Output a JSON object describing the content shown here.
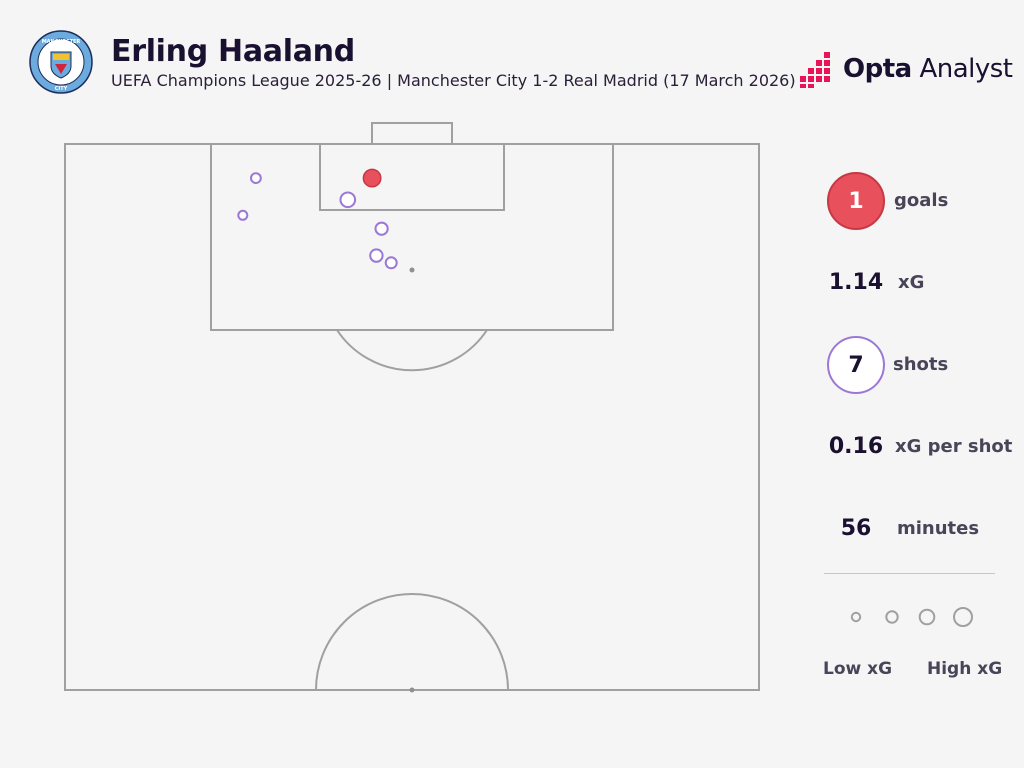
{
  "header": {
    "title": "Erling Haaland",
    "subtitle": "UEFA Champions League 2025-26 | Manchester City 1-2 Real Madrid (17 March 2026)",
    "crest_text": "MANCHESTER CITY",
    "brand_bold": "Opta",
    "brand_light": "Analyst"
  },
  "colors": {
    "goal": "#e8505b",
    "shot": "#9b78d6",
    "pitch_line": "#a0a0a0",
    "background": "#f5f5f5"
  },
  "stats": {
    "goals_value": "1",
    "goals_label": "goals",
    "xg_value": "1.14",
    "xg_label": "xG",
    "shots_value": "7",
    "shots_label": "shots",
    "xg_per_shot_value": "0.16",
    "xg_per_shot_label": "xG per shot",
    "minutes_value": "56",
    "minutes_label": "minutes"
  },
  "legend": {
    "low_label": "Low xG",
    "high_label": "High xG"
  },
  "chart_data": {
    "type": "scatter",
    "pitch": "half-pitch shot map, attacking goal at top",
    "shots": [
      {
        "x_yards_from_left_touchline": 35.4,
        "y_yards_from_goal_line": 3.3,
        "xg": 0.45,
        "outcome": "goal"
      },
      {
        "x_yards_from_left_touchline": 32.6,
        "y_yards_from_goal_line": 5.4,
        "xg": 0.25,
        "outcome": "shot"
      },
      {
        "x_yards_from_left_touchline": 22.0,
        "y_yards_from_goal_line": 3.3,
        "xg": 0.05,
        "outcome": "shot"
      },
      {
        "x_yards_from_left_touchline": 20.5,
        "y_yards_from_goal_line": 6.9,
        "xg": 0.03,
        "outcome": "shot"
      },
      {
        "x_yards_from_left_touchline": 36.5,
        "y_yards_from_goal_line": 8.2,
        "xg": 0.13,
        "outcome": "shot"
      },
      {
        "x_yards_from_left_touchline": 35.9,
        "y_yards_from_goal_line": 10.8,
        "xg": 0.14,
        "outcome": "shot"
      },
      {
        "x_yards_from_left_touchline": 37.6,
        "y_yards_from_goal_line": 11.5,
        "xg": 0.09,
        "outcome": "shot"
      }
    ],
    "legend_sizes_xg": [
      0.02,
      0.1,
      0.25,
      0.5
    ]
  }
}
